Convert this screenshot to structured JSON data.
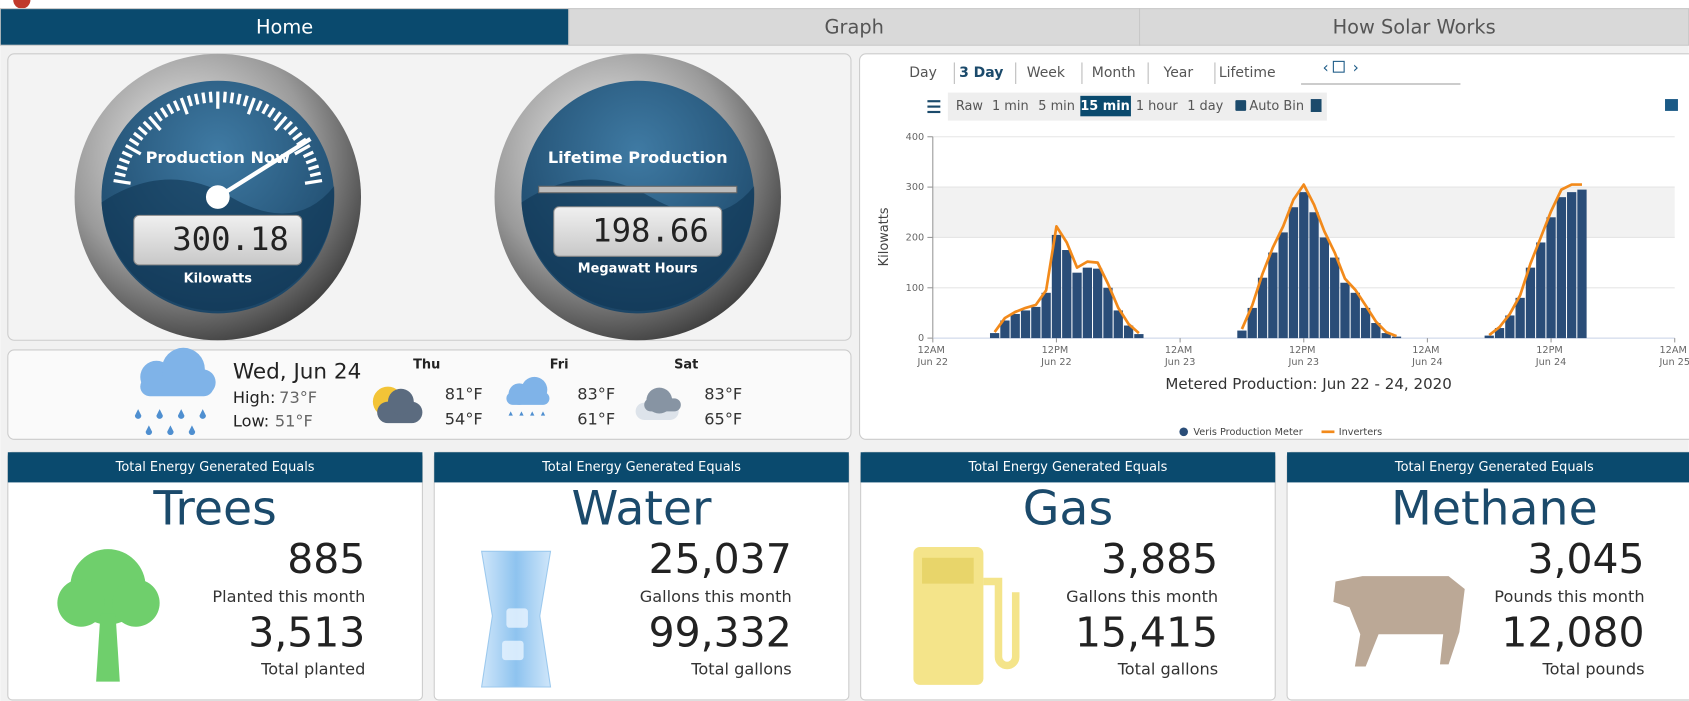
{
  "nav": {
    "tabs": [
      "Home",
      "Graph",
      "How Solar Works"
    ]
  },
  "gauges": [
    {
      "label": "Production Now",
      "value": "300.18",
      "unit": "Kilowatts"
    },
    {
      "label": "Lifetime Production",
      "value": "198.66",
      "unit": "Megawatt Hours"
    }
  ],
  "weather": {
    "today": {
      "date": "Wed, Jun 24",
      "high_label": "High:",
      "high": "73°F",
      "low_label": "Low:",
      "low": "51°F"
    },
    "forecast": [
      {
        "day": "Thu",
        "high": "81°F",
        "low": "54°F"
      },
      {
        "day": "Fri",
        "high": "83°F",
        "low": "61°F"
      },
      {
        "day": "Sat",
        "high": "83°F",
        "low": "65°F"
      }
    ]
  },
  "chart_controls": {
    "ranges": [
      "Day",
      "3 Day",
      "Week",
      "Month",
      "Year",
      "Lifetime"
    ],
    "bins": [
      "Raw",
      "1 min",
      "5 min",
      "15 min",
      "1 hour",
      "1 day"
    ],
    "auto_bin": "Auto Bin"
  },
  "chart_data": {
    "type": "bar",
    "title": "Metered Production: Jun 22 - 24, 2020",
    "ylabel": "Kilowatts",
    "x": [
      0,
      1,
      2,
      3,
      4,
      5,
      6,
      7,
      8,
      9,
      10,
      11,
      12,
      13,
      14,
      15,
      16,
      17,
      18,
      19,
      20,
      21,
      22,
      23,
      24,
      25,
      26,
      27,
      28,
      29,
      30,
      31,
      32,
      33,
      34,
      35,
      36,
      37,
      38,
      39,
      40,
      41,
      42,
      43,
      44,
      45,
      46,
      47,
      48,
      49,
      50,
      51,
      52,
      53,
      54,
      55,
      56,
      57,
      58,
      59,
      60,
      61,
      62,
      63,
      64,
      65,
      66,
      67,
      68,
      69,
      70,
      71
    ],
    "xlim": [
      0,
      72
    ],
    "xticks": [
      {
        "value": 0,
        "label": "12AM Jun 22"
      },
      {
        "value": 12,
        "label": "12PM Jun 22"
      },
      {
        "value": 24,
        "label": "12AM Jun 23"
      },
      {
        "value": 36,
        "label": "12PM Jun 23"
      },
      {
        "value": 48,
        "label": "12AM Jun 24"
      },
      {
        "value": 60,
        "label": "12PM Jun 24"
      },
      {
        "value": 72,
        "label": "12AM Jun 25"
      }
    ],
    "ylim": [
      0,
      400
    ],
    "yticks": [
      0,
      100,
      200,
      300,
      400
    ],
    "grid": true,
    "legend": "bottom",
    "series": [
      {
        "name": "Veris Production Meter",
        "color": "#2a4d78",
        "kind": "bar",
        "values": [
          null,
          null,
          null,
          null,
          null,
          null,
          10,
          35,
          48,
          55,
          62,
          90,
          205,
          175,
          130,
          140,
          138,
          100,
          55,
          25,
          8,
          null,
          null,
          null,
          null,
          null,
          null,
          null,
          null,
          null,
          15,
          60,
          120,
          170,
          210,
          260,
          290,
          250,
          200,
          160,
          110,
          90,
          60,
          30,
          10,
          3,
          null,
          null,
          null,
          null,
          null,
          null,
          null,
          null,
          5,
          20,
          45,
          80,
          140,
          190,
          240,
          280,
          290,
          295,
          null,
          null,
          null,
          null,
          null,
          null,
          null,
          null
        ]
      },
      {
        "name": "Inverters",
        "color": "#f28a1b",
        "kind": "line",
        "values": [
          null,
          null,
          null,
          null,
          null,
          null,
          12,
          40,
          52,
          60,
          66,
          95,
          222,
          190,
          140,
          152,
          150,
          108,
          60,
          28,
          10,
          null,
          null,
          null,
          null,
          null,
          null,
          null,
          null,
          null,
          18,
          65,
          128,
          180,
          222,
          275,
          305,
          265,
          212,
          170,
          118,
          96,
          65,
          33,
          12,
          4,
          null,
          null,
          null,
          null,
          null,
          null,
          null,
          null,
          6,
          22,
          48,
          85,
          148,
          200,
          252,
          295,
          305,
          305,
          null,
          null,
          null,
          null,
          null,
          null,
          null,
          null
        ]
      }
    ]
  },
  "cards": [
    {
      "header": "Total Energy Generated Equals",
      "title": "Trees",
      "month_value": "885",
      "month_label": "Planted this month",
      "total_value": "3,513",
      "total_label": "Total planted"
    },
    {
      "header": "Total Energy Generated Equals",
      "title": "Water",
      "month_value": "25,037",
      "month_label": "Gallons this month",
      "total_value": "99,332",
      "total_label": "Total gallons"
    },
    {
      "header": "Total Energy Generated Equals",
      "title": "Gas",
      "month_value": "3,885",
      "month_label": "Gallons this month",
      "total_value": "15,415",
      "total_label": "Total gallons"
    },
    {
      "header": "Total Energy Generated Equals",
      "title": "Methane",
      "month_value": "3,045",
      "month_label": "Pounds this month",
      "total_value": "12,080",
      "total_label": "Total pounds"
    }
  ]
}
